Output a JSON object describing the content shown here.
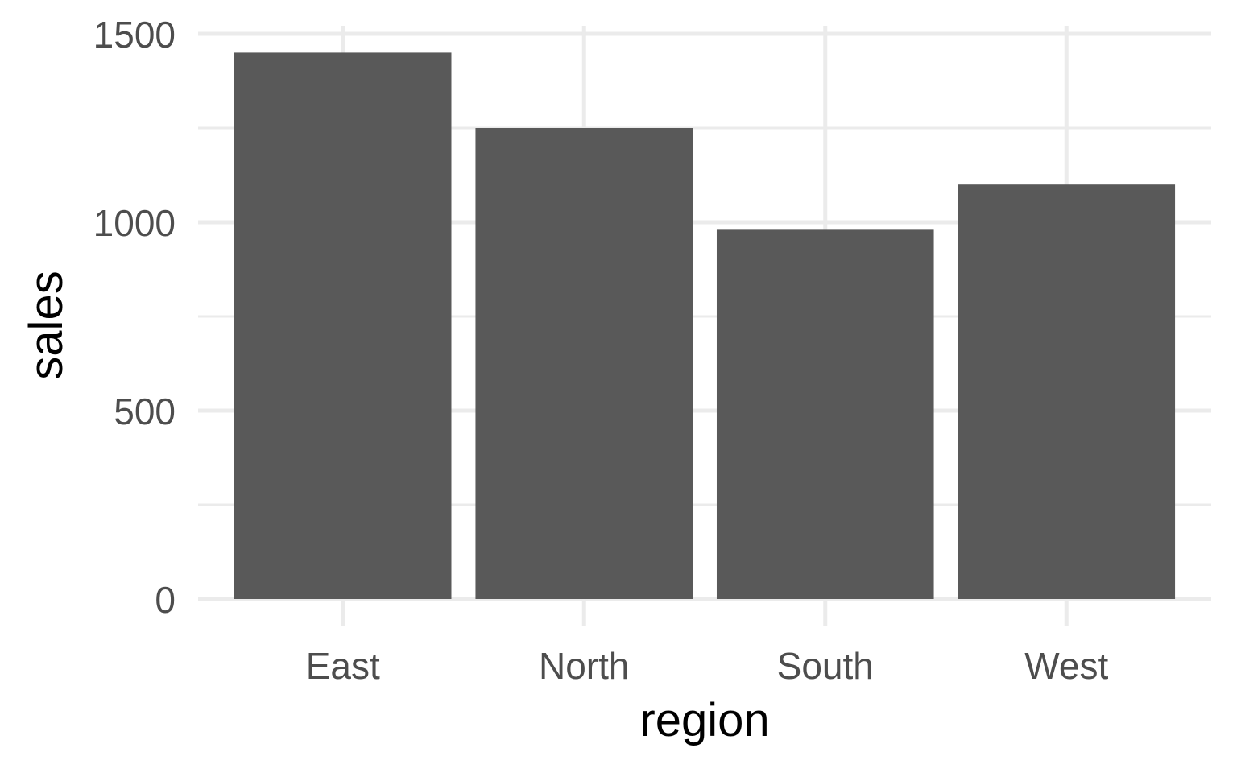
{
  "chart_data": {
    "type": "bar",
    "categories": [
      "East",
      "North",
      "South",
      "West"
    ],
    "values": [
      1450,
      1250,
      980,
      1100
    ],
    "xlabel": "region",
    "ylabel": "sales",
    "ylim": [
      0,
      1500
    ],
    "yticks": [
      0,
      500,
      1000,
      1500
    ],
    "y_tick_labels": [
      "0",
      "500",
      "1000",
      "1500"
    ],
    "grid": true,
    "legend": "none",
    "colors": {
      "bar": "#595959",
      "grid": "#ebebeb",
      "tick_text": "#4d4d4d",
      "title_text": "#000000",
      "background": "#ffffff"
    }
  }
}
